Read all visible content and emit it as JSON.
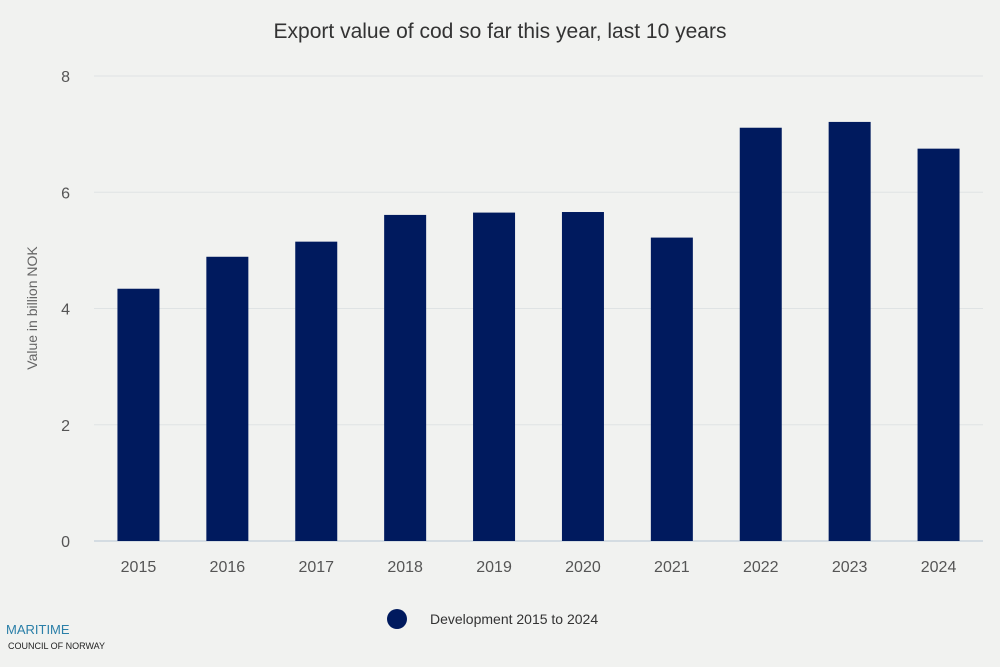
{
  "chart_data": {
    "type": "bar",
    "title": "Export value of cod so far this year, last 10 years",
    "xlabel": "",
    "ylabel": "Value in billion NOK",
    "categories": [
      "2015",
      "2016",
      "2017",
      "2018",
      "2019",
      "2020",
      "2021",
      "2022",
      "2023",
      "2024"
    ],
    "series": [
      {
        "name": "Development 2015 to 2024",
        "values": [
          4.34,
          4.89,
          5.15,
          5.61,
          5.65,
          5.66,
          5.22,
          7.11,
          7.21,
          6.75
        ],
        "color": "#001a5e"
      }
    ],
    "ylim": [
      0,
      8
    ],
    "yticks": [
      0,
      2,
      4,
      6,
      8
    ],
    "grid": true,
    "legend_position": "bottom"
  },
  "logo": {
    "line1": "MARITIME",
    "line2": "COUNCIL OF NORWAY"
  }
}
